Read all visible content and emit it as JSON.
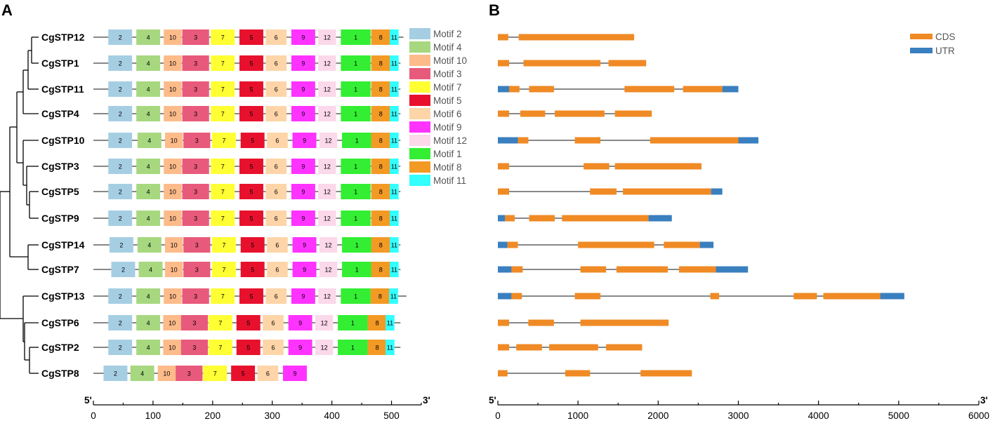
{
  "panels": {
    "a": "A",
    "b": "B"
  },
  "genes": [
    "CgSTP12",
    "CgSTP1",
    "CgSTP11",
    "CgSTP4",
    "CgSTP10",
    "CgSTP3",
    "CgSTP5",
    "CgSTP9",
    "CgSTP14",
    "CgSTP7",
    "CgSTP13",
    "CgSTP6",
    "CgSTP2",
    "CgSTP8"
  ],
  "motif_legend": [
    {
      "id": "2",
      "label": "Motif 2",
      "color": "#a6cee3"
    },
    {
      "id": "4",
      "label": "Motif 4",
      "color": "#a7d880"
    },
    {
      "id": "10",
      "label": "Motif 10",
      "color": "#fdbb8a"
    },
    {
      "id": "3",
      "label": "Motif 3",
      "color": "#e85a7b"
    },
    {
      "id": "7",
      "label": "Motif 7",
      "color": "#ffff33"
    },
    {
      "id": "5",
      "label": "Motif 5",
      "color": "#e8112d"
    },
    {
      "id": "6",
      "label": "Motif 6",
      "color": "#fdd5a8"
    },
    {
      "id": "9",
      "label": "Motif 9",
      "color": "#ff33ff"
    },
    {
      "id": "12",
      "label": "Motif 12",
      "color": "#fbd8ea"
    },
    {
      "id": "1",
      "label": "Motif 1",
      "color": "#33ee33"
    },
    {
      "id": "8",
      "label": "Motif 8",
      "color": "#f39a25"
    },
    {
      "id": "11",
      "label": "Motif 11",
      "color": "#33ffff"
    }
  ],
  "gene_legend": [
    {
      "label": "CDS",
      "color": "#f08a24"
    },
    {
      "label": "UTR",
      "color": "#3a7fbf"
    }
  ],
  "motif_axis": {
    "ticks": [
      "0",
      "100",
      "200",
      "300",
      "400",
      "500"
    ],
    "min": 0,
    "max": 550,
    "left_end": "5'",
    "right_end": "3'"
  },
  "gene_axis": {
    "ticks": [
      "0",
      "1000",
      "2000",
      "3000",
      "4000",
      "5000",
      "6000"
    ],
    "min": 0,
    "max": 6000,
    "left_end": "5'",
    "right_end": "3'"
  },
  "motif_tracks": [
    {
      "gene": "CgSTP12",
      "len": 520,
      "starts": [
        25,
        72,
        118,
        149,
        197,
        245,
        289,
        332,
        377,
        415,
        466,
        497
      ]
    },
    {
      "gene": "CgSTP1",
      "len": 515,
      "starts": [
        25,
        72,
        118,
        149,
        197,
        245,
        289,
        332,
        377,
        415,
        466,
        497
      ]
    },
    {
      "gene": "CgSTP11",
      "len": 515,
      "starts": [
        25,
        72,
        118,
        149,
        197,
        245,
        289,
        332,
        377,
        415,
        466,
        497
      ]
    },
    {
      "gene": "CgSTP4",
      "len": 515,
      "starts": [
        25,
        72,
        118,
        149,
        197,
        245,
        289,
        332,
        377,
        415,
        466,
        497
      ]
    },
    {
      "gene": "CgSTP10",
      "len": 515,
      "starts": [
        25,
        74,
        120,
        151,
        199,
        247,
        291,
        334,
        379,
        417,
        466,
        497
      ]
    },
    {
      "gene": "CgSTP3",
      "len": 515,
      "starts": [
        25,
        72,
        118,
        149,
        197,
        245,
        289,
        332,
        377,
        415,
        466,
        497
      ]
    },
    {
      "gene": "CgSTP5",
      "len": 515,
      "starts": [
        25,
        72,
        118,
        149,
        197,
        245,
        289,
        332,
        377,
        415,
        466,
        497
      ]
    },
    {
      "gene": "CgSTP9",
      "len": 500,
      "starts": [
        25,
        72,
        118,
        149,
        197,
        245,
        289,
        332,
        377,
        415,
        466,
        497
      ]
    },
    {
      "gene": "CgSTP14",
      "len": 515,
      "starts": [
        27,
        74,
        120,
        151,
        199,
        247,
        291,
        334,
        379,
        417,
        466,
        497
      ]
    },
    {
      "gene": "CgSTP7",
      "len": 515,
      "starts": [
        30,
        76,
        120,
        151,
        199,
        247,
        291,
        334,
        379,
        417,
        466,
        497
      ]
    },
    {
      "gene": "CgSTP13",
      "len": 525,
      "starts": [
        25,
        72,
        118,
        149,
        197,
        245,
        289,
        332,
        377,
        415,
        465,
        496
      ]
    },
    {
      "gene": "CgSTP6",
      "len": 515,
      "starts": [
        25,
        72,
        117,
        147,
        193,
        240,
        284,
        327,
        372,
        410,
        460,
        490
      ]
    },
    {
      "gene": "CgSTP2",
      "len": 515,
      "starts": [
        25,
        72,
        117,
        147,
        193,
        240,
        284,
        327,
        372,
        410,
        460,
        490
      ]
    },
    {
      "gene": "CgSTP8",
      "len": 350,
      "starts": [
        17,
        62,
        108,
        138,
        184,
        231,
        275,
        318,
        null,
        null,
        null,
        null
      ]
    }
  ],
  "gene_tracks": [
    {
      "gene": "CgSTP12",
      "len": 1700,
      "segs": [
        [
          "cds",
          0,
          130
        ],
        [
          "cds",
          260,
          1700
        ]
      ]
    },
    {
      "gene": "CgSTP1",
      "len": 1850,
      "segs": [
        [
          "cds",
          0,
          140
        ],
        [
          "cds",
          320,
          1280
        ],
        [
          "cds",
          1380,
          1850
        ]
      ]
    },
    {
      "gene": "CgSTP11",
      "len": 3000,
      "segs": [
        [
          "utr",
          0,
          140
        ],
        [
          "cds",
          140,
          270
        ],
        [
          "cds",
          390,
          700
        ],
        [
          "cds",
          1580,
          2200
        ],
        [
          "cds",
          2310,
          2800
        ],
        [
          "utr",
          2800,
          3000
        ]
      ]
    },
    {
      "gene": "CgSTP4",
      "len": 1920,
      "segs": [
        [
          "cds",
          0,
          140
        ],
        [
          "cds",
          280,
          590
        ],
        [
          "cds",
          710,
          1330
        ],
        [
          "cds",
          1460,
          1920
        ]
      ]
    },
    {
      "gene": "CgSTP10",
      "len": 3250,
      "segs": [
        [
          "utr",
          0,
          250
        ],
        [
          "cds",
          250,
          380
        ],
        [
          "cds",
          960,
          1280
        ],
        [
          "cds",
          1900,
          3000
        ],
        [
          "utr",
          3000,
          3250
        ]
      ]
    },
    {
      "gene": "CgSTP3",
      "len": 2540,
      "segs": [
        [
          "cds",
          0,
          140
        ],
        [
          "cds",
          1070,
          1390
        ],
        [
          "cds",
          1460,
          2540
        ]
      ]
    },
    {
      "gene": "CgSTP5",
      "len": 2800,
      "segs": [
        [
          "cds",
          0,
          140
        ],
        [
          "cds",
          1150,
          1480
        ],
        [
          "cds",
          1560,
          2660
        ],
        [
          "utr",
          2660,
          2800
        ]
      ]
    },
    {
      "gene": "CgSTP9",
      "len": 2170,
      "segs": [
        [
          "utr",
          0,
          90
        ],
        [
          "cds",
          90,
          210
        ],
        [
          "cds",
          390,
          710
        ],
        [
          "cds",
          800,
          1880
        ],
        [
          "utr",
          1880,
          2170
        ]
      ]
    },
    {
      "gene": "CgSTP14",
      "len": 2690,
      "segs": [
        [
          "utr",
          0,
          120
        ],
        [
          "cds",
          120,
          250
        ],
        [
          "cds",
          1000,
          1950
        ],
        [
          "cds",
          2070,
          2520
        ],
        [
          "utr",
          2520,
          2690
        ]
      ]
    },
    {
      "gene": "CgSTP7",
      "len": 3120,
      "segs": [
        [
          "utr",
          0,
          170
        ],
        [
          "cds",
          170,
          310
        ],
        [
          "cds",
          1030,
          1350
        ],
        [
          "cds",
          1480,
          2120
        ],
        [
          "cds",
          2260,
          2720
        ],
        [
          "utr",
          2720,
          3120
        ]
      ]
    },
    {
      "gene": "CgSTP13",
      "len": 5070,
      "segs": [
        [
          "utr",
          0,
          170
        ],
        [
          "cds",
          170,
          300
        ],
        [
          "cds",
          960,
          1280
        ],
        [
          "cds",
          2650,
          2760
        ],
        [
          "cds",
          3690,
          3980
        ],
        [
          "cds",
          4060,
          4770
        ],
        [
          "utr",
          4770,
          5070
        ]
      ]
    },
    {
      "gene": "CgSTP6",
      "len": 2130,
      "segs": [
        [
          "cds",
          0,
          140
        ],
        [
          "cds",
          380,
          700
        ],
        [
          "cds",
          1030,
          2130
        ]
      ]
    },
    {
      "gene": "CgSTP2",
      "len": 1800,
      "segs": [
        [
          "cds",
          0,
          140
        ],
        [
          "cds",
          230,
          550
        ],
        [
          "cds",
          640,
          1250
        ],
        [
          "cds",
          1350,
          1800
        ]
      ]
    },
    {
      "gene": "CgSTP8",
      "len": 2420,
      "segs": [
        [
          "cds",
          0,
          120
        ],
        [
          "cds",
          840,
          1150
        ],
        [
          "cds",
          1780,
          2420
        ]
      ]
    }
  ]
}
